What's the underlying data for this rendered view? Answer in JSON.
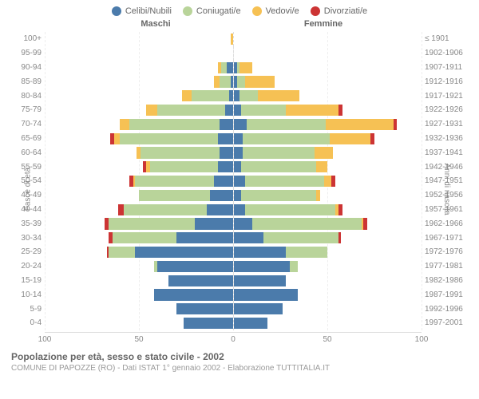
{
  "legend": [
    {
      "name": "celibi",
      "label": "Celibi/Nubili",
      "color": "#4b7bab"
    },
    {
      "name": "coniugati",
      "label": "Coniugati/e",
      "color": "#b9d49a"
    },
    {
      "name": "vedovi",
      "label": "Vedovi/e",
      "color": "#f6c154"
    },
    {
      "name": "divorziati",
      "label": "Divorziati/e",
      "color": "#cc3434"
    }
  ],
  "headers": {
    "male": "Maschi",
    "female": "Femmine"
  },
  "ylabel_left": "Fasce di età",
  "ylabel_right": "Anni di nascita",
  "xaxis": {
    "min": -100,
    "max": 100,
    "ticks": [
      100,
      50,
      0,
      50,
      100
    ]
  },
  "title": "Popolazione per età, sesso e stato civile - 2002",
  "source": "COMUNE DI PAPOZZE (RO) - Dati ISTAT 1° gennaio 2002 - Elaborazione TUTTITALIA.IT",
  "colors": {
    "grid": "#eeeeee",
    "text": "#888888",
    "bg": "#ffffff"
  },
  "rows": [
    {
      "age": "100+",
      "year": "≤ 1901",
      "m": {
        "cel": 0,
        "con": 0,
        "ved": 1,
        "div": 0
      },
      "f": {
        "cel": 0,
        "con": 0,
        "ved": 0,
        "div": 0
      }
    },
    {
      "age": "95-99",
      "year": "1902-1906",
      "m": {
        "cel": 0,
        "con": 0,
        "ved": 0,
        "div": 0
      },
      "f": {
        "cel": 0,
        "con": 0,
        "ved": 0,
        "div": 0
      }
    },
    {
      "age": "90-94",
      "year": "1907-1911",
      "m": {
        "cel": 3,
        "con": 3,
        "ved": 2,
        "div": 0
      },
      "f": {
        "cel": 2,
        "con": 1,
        "ved": 7,
        "div": 0
      }
    },
    {
      "age": "85-89",
      "year": "1912-1916",
      "m": {
        "cel": 1,
        "con": 6,
        "ved": 3,
        "div": 0
      },
      "f": {
        "cel": 2,
        "con": 4,
        "ved": 16,
        "div": 0
      }
    },
    {
      "age": "80-84",
      "year": "1917-1921",
      "m": {
        "cel": 2,
        "con": 20,
        "ved": 5,
        "div": 0
      },
      "f": {
        "cel": 3,
        "con": 10,
        "ved": 22,
        "div": 0
      }
    },
    {
      "age": "75-79",
      "year": "1922-1926",
      "m": {
        "cel": 4,
        "con": 36,
        "ved": 6,
        "div": 0
      },
      "f": {
        "cel": 4,
        "con": 24,
        "ved": 28,
        "div": 2
      }
    },
    {
      "age": "70-74",
      "year": "1927-1931",
      "m": {
        "cel": 7,
        "con": 48,
        "ved": 5,
        "div": 0
      },
      "f": {
        "cel": 7,
        "con": 42,
        "ved": 36,
        "div": 2
      }
    },
    {
      "age": "65-69",
      "year": "1932-1936",
      "m": {
        "cel": 8,
        "con": 52,
        "ved": 3,
        "div": 2
      },
      "f": {
        "cel": 5,
        "con": 46,
        "ved": 22,
        "div": 2
      }
    },
    {
      "age": "60-64",
      "year": "1937-1941",
      "m": {
        "cel": 7,
        "con": 42,
        "ved": 2,
        "div": 0
      },
      "f": {
        "cel": 5,
        "con": 38,
        "ved": 10,
        "div": 0
      }
    },
    {
      "age": "55-59",
      "year": "1942-1946",
      "m": {
        "cel": 8,
        "con": 36,
        "ved": 2,
        "div": 2
      },
      "f": {
        "cel": 4,
        "con": 40,
        "ved": 6,
        "div": 0
      }
    },
    {
      "age": "50-54",
      "year": "1947-1951",
      "m": {
        "cel": 10,
        "con": 42,
        "ved": 1,
        "div": 2
      },
      "f": {
        "cel": 6,
        "con": 42,
        "ved": 4,
        "div": 2
      }
    },
    {
      "age": "45-49",
      "year": "1952-1956",
      "m": {
        "cel": 12,
        "con": 38,
        "ved": 0,
        "div": 0
      },
      "f": {
        "cel": 4,
        "con": 40,
        "ved": 2,
        "div": 0
      }
    },
    {
      "age": "40-44",
      "year": "1957-1961",
      "m": {
        "cel": 14,
        "con": 44,
        "ved": 0,
        "div": 3
      },
      "f": {
        "cel": 6,
        "con": 48,
        "ved": 2,
        "div": 2
      }
    },
    {
      "age": "35-39",
      "year": "1962-1966",
      "m": {
        "cel": 20,
        "con": 46,
        "ved": 0,
        "div": 2
      },
      "f": {
        "cel": 10,
        "con": 58,
        "ved": 1,
        "div": 2
      }
    },
    {
      "age": "30-34",
      "year": "1967-1971",
      "m": {
        "cel": 30,
        "con": 34,
        "ved": 0,
        "div": 2
      },
      "f": {
        "cel": 16,
        "con": 40,
        "ved": 0,
        "div": 1
      }
    },
    {
      "age": "25-29",
      "year": "1972-1976",
      "m": {
        "cel": 52,
        "con": 14,
        "ved": 0,
        "div": 1
      },
      "f": {
        "cel": 28,
        "con": 22,
        "ved": 0,
        "div": 0
      }
    },
    {
      "age": "20-24",
      "year": "1977-1981",
      "m": {
        "cel": 40,
        "con": 2,
        "ved": 0,
        "div": 0
      },
      "f": {
        "cel": 30,
        "con": 4,
        "ved": 0,
        "div": 0
      }
    },
    {
      "age": "15-19",
      "year": "1982-1986",
      "m": {
        "cel": 34,
        "con": 0,
        "ved": 0,
        "div": 0
      },
      "f": {
        "cel": 28,
        "con": 0,
        "ved": 0,
        "div": 0
      }
    },
    {
      "age": "10-14",
      "year": "1987-1991",
      "m": {
        "cel": 42,
        "con": 0,
        "ved": 0,
        "div": 0
      },
      "f": {
        "cel": 34,
        "con": 0,
        "ved": 0,
        "div": 0
      }
    },
    {
      "age": "5-9",
      "year": "1992-1996",
      "m": {
        "cel": 30,
        "con": 0,
        "ved": 0,
        "div": 0
      },
      "f": {
        "cel": 26,
        "con": 0,
        "ved": 0,
        "div": 0
      }
    },
    {
      "age": "0-4",
      "year": "1997-2001",
      "m": {
        "cel": 26,
        "con": 0,
        "ved": 0,
        "div": 0
      },
      "f": {
        "cel": 18,
        "con": 0,
        "ved": 0,
        "div": 0
      }
    }
  ]
}
